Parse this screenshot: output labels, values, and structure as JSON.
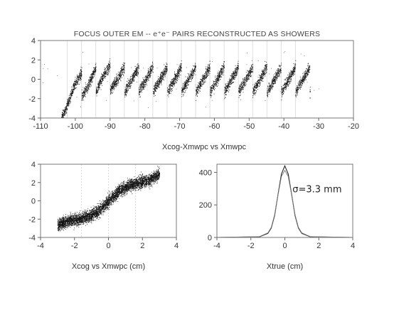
{
  "chart_data": [
    {
      "type": "scatter",
      "title": "FOCUS OUTER EM -- e⁺e⁻ PAIRS RECONSTRUCTED AS SHOWERS",
      "caption": "Xcog-Xmwpc vs Xmwpc",
      "xlim": [
        -110,
        -20
      ],
      "ylim": [
        -4,
        4
      ],
      "x_ticks": [
        -110,
        -100,
        -90,
        -80,
        -70,
        -60,
        -50,
        -40,
        -30,
        -20
      ],
      "y_ticks": [
        -4,
        -2,
        0,
        2,
        4
      ],
      "cell_boundaries": [
        -102.3,
        -98.2,
        -94.1,
        -90.0,
        -85.9,
        -81.8,
        -77.7,
        -73.6,
        -69.5,
        -65.4,
        -61.3,
        -57.2,
        -53.1,
        -49.0,
        -44.9,
        -40.8,
        -36.7
      ],
      "series": [
        {
          "points": [
            [
              -103.0,
              -1.5
            ],
            [
              -100.5,
              -0.6
            ],
            [
              -96.5,
              -0.5
            ],
            [
              -92.0,
              0.4
            ],
            [
              -88.0,
              0.0
            ],
            [
              -84.0,
              0.0
            ],
            [
              -80.0,
              0.0
            ],
            [
              -76.0,
              0.0
            ],
            [
              -72.0,
              0.0
            ],
            [
              -68.0,
              0.0
            ],
            [
              -64.0,
              0.0
            ],
            [
              -60.0,
              0.0
            ],
            [
              -56.0,
              0.0
            ],
            [
              -52.0,
              0.0
            ],
            [
              -48.0,
              0.0
            ],
            [
              -44.0,
              0.0
            ],
            [
              -40.0,
              0.0
            ],
            [
              -36.0,
              0.0
            ],
            [
              -33.0,
              0.0
            ]
          ]
        }
      ]
    },
    {
      "type": "scatter",
      "caption": "Xcog vs Xmwpc  (cm)",
      "xlim": [
        -4,
        4
      ],
      "ylim": [
        -4,
        4
      ],
      "x_ticks": [
        -4,
        -2,
        0,
        2,
        4
      ],
      "y_ticks": [
        -4,
        -2,
        0,
        2,
        4
      ],
      "cell_boundaries": [
        -1.6,
        0,
        1.6
      ],
      "series": [
        {
          "points": [
            [
              -3.0,
              -2.6
            ],
            [
              -2.4,
              -2.2
            ],
            [
              -1.8,
              -2.0
            ],
            [
              -1.2,
              -1.7
            ],
            [
              -0.6,
              -1.1
            ],
            [
              0.0,
              0.0
            ],
            [
              0.6,
              1.1
            ],
            [
              1.2,
              1.7
            ],
            [
              1.8,
              2.0
            ],
            [
              2.4,
              2.3
            ],
            [
              3.0,
              3.0
            ]
          ]
        }
      ]
    },
    {
      "type": "line",
      "caption": "Xtrue  (cm)",
      "annotation": "σ=3.3 mm",
      "xlim": [
        -4,
        4
      ],
      "ylim": [
        0,
        450
      ],
      "x_ticks": [
        -4,
        -2,
        0,
        2,
        4
      ],
      "y_ticks": [
        0,
        200,
        400
      ],
      "series": [
        {
          "x": [
            -4.0,
            -1.5,
            -1.0,
            -0.8,
            -0.6,
            -0.4,
            -0.2,
            0.0,
            0.2,
            0.4,
            0.6,
            0.8,
            1.0,
            1.5,
            4.0
          ],
          "values": [
            0,
            4,
            25,
            58,
            135,
            265,
            390,
            440,
            390,
            265,
            135,
            58,
            25,
            4,
            0
          ]
        },
        {
          "x": [
            -4.0,
            -1.5,
            -1.0,
            -0.8,
            -0.6,
            -0.4,
            -0.2,
            0.0,
            0.2,
            0.4,
            0.6,
            0.8,
            1.0,
            1.5,
            4.0
          ],
          "values": [
            0,
            5,
            28,
            62,
            140,
            262,
            375,
            412,
            375,
            262,
            140,
            62,
            28,
            5,
            0
          ]
        }
      ]
    }
  ]
}
